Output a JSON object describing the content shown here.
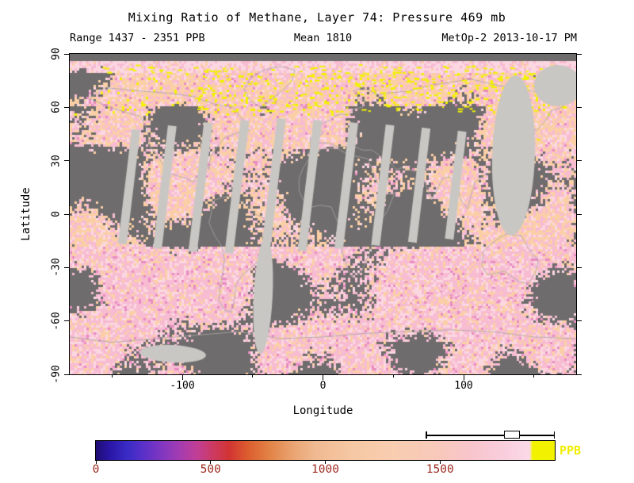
{
  "chart_data": {
    "type": "heatmap",
    "title": "Mixing Ratio of Methane, Layer 74: Pressure 469 mb",
    "subtitle_left": "Range 1437 - 2351 PPB",
    "subtitle_center": "Mean 1810",
    "subtitle_right": "MetOp-2 2013-10-17 PM",
    "xlabel": "Longitude",
    "ylabel": "Latitude",
    "xlim": [
      -180,
      180
    ],
    "ylim": [
      -90,
      90
    ],
    "x_major_ticks": [
      -100,
      0,
      100
    ],
    "x_minor_ticks": [
      -150,
      -50,
      50,
      150
    ],
    "y_major_ticks": [
      90,
      60,
      30,
      0,
      -30,
      -60,
      -90
    ],
    "grid": false,
    "units": "PPB",
    "value_range": [
      1437,
      2351
    ],
    "mean_value": 1810,
    "colorbar_position": "bottom",
    "colorbar": {
      "label": "PPB",
      "min": 0,
      "max": 2000,
      "ticks": [
        0,
        500,
        1000,
        1500
      ],
      "tick_label_color": "#9e2b20",
      "units_label_color": "#f0ee00",
      "gradient": [
        {
          "stop": 0.0,
          "color": "#1f0c72"
        },
        {
          "stop": 0.03,
          "color": "#2a16a6"
        },
        {
          "stop": 0.07,
          "color": "#3a2cc6"
        },
        {
          "stop": 0.105,
          "color": "#5c30c8"
        },
        {
          "stop": 0.14,
          "color": "#7d36c2"
        },
        {
          "stop": 0.18,
          "color": "#a23cb2"
        },
        {
          "stop": 0.22,
          "color": "#c13e96"
        },
        {
          "stop": 0.255,
          "color": "#cc3a62"
        },
        {
          "stop": 0.29,
          "color": "#d23434"
        },
        {
          "stop": 0.33,
          "color": "#dc5c2e"
        },
        {
          "stop": 0.38,
          "color": "#e28448"
        },
        {
          "stop": 0.43,
          "color": "#eaa472"
        },
        {
          "stop": 0.48,
          "color": "#f0ba92"
        },
        {
          "stop": 0.56,
          "color": "#f6c8a4"
        },
        {
          "stop": 0.65,
          "color": "#f8cdb0"
        },
        {
          "stop": 0.74,
          "color": "#f8c9ba"
        },
        {
          "stop": 0.82,
          "color": "#f8c5cc"
        },
        {
          "stop": 0.89,
          "color": "#f9cedd"
        },
        {
          "stop": 0.945,
          "color": "#fbd9e7"
        },
        {
          "stop": 0.952,
          "color": "#f2f200"
        },
        {
          "stop": 1.0,
          "color": "#f2f200"
        }
      ]
    },
    "map_palette": {
      "missing": "#6e6c6c",
      "gap": "#c9c7c3",
      "peach": "#fbcfa6",
      "pink": "#f7bcd2",
      "light_pink": "#fbd7e2",
      "magenta": "#e98cc3",
      "high_yellow": "#f2f200",
      "coastline": "#a9a7a3"
    }
  }
}
